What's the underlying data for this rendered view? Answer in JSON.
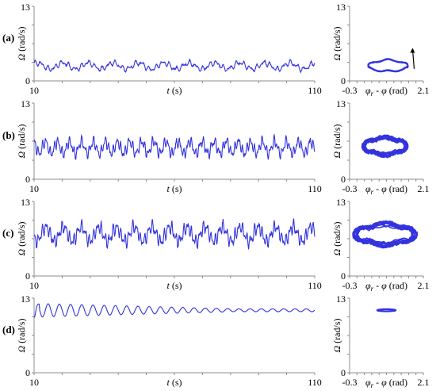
{
  "colors": {
    "series": "#3333dd",
    "axis": "#8c8c8c",
    "text": "#000000"
  },
  "chart_data": [
    {
      "panel": "(a)",
      "type": "line",
      "role": "time-series",
      "xlabel": {
        "sym": "t",
        "unit": " (s)"
      },
      "ylabel": {
        "sym": "Ω",
        "unit": " (rad/s)"
      },
      "xlim": [
        10,
        110
      ],
      "ylim": [
        0,
        13
      ],
      "x_tick_labels": [
        "10",
        "110"
      ],
      "y_tick_labels": [
        "0",
        "13"
      ],
      "x": [
        10,
        110
      ],
      "mean": 2.6,
      "amplitude": 0.9,
      "fast_period": 2.4,
      "slow_period": 9,
      "series": [
        {
          "values_range": [
            1.5,
            3.8
          ]
        }
      ]
    },
    {
      "panel": "(a)",
      "type": "scatter",
      "role": "phase-portrait",
      "xlabel": {
        "sym": "φ",
        "sub": "r",
        "rest": " - φ",
        "unit": " (rad)"
      },
      "ylabel": {
        "sym": "Ω",
        "unit": " (rad/s)"
      },
      "xlim": [
        -0.3,
        2.1
      ],
      "ylim": [
        0,
        13
      ],
      "x_tick_labels": [
        "-0.3",
        "2.1"
      ],
      "y_tick_labels": [
        "0",
        "13"
      ],
      "orbit_x": [
        0.3,
        1.6
      ],
      "orbit_y": [
        1.5,
        3.8
      ],
      "has_arrow": true
    },
    {
      "panel": "(b)",
      "type": "line",
      "role": "time-series",
      "xlabel": {
        "sym": "t",
        "unit": " (s)"
      },
      "ylabel": {
        "sym": "Ω",
        "unit": " (rad/s)"
      },
      "xlim": [
        10,
        110
      ],
      "ylim": [
        0,
        13
      ],
      "x_tick_labels": [
        "10",
        "110"
      ],
      "y_tick_labels": [
        "0",
        "13"
      ],
      "x": [
        10,
        110
      ],
      "mean": 5.4,
      "amplitude": 1.7,
      "fast_period": 1.4,
      "slow_period": 4.3,
      "series": [
        {
          "values_range": [
            3.0,
            7.8
          ]
        }
      ]
    },
    {
      "panel": "(b)",
      "type": "scatter",
      "role": "phase-portrait",
      "xlabel": {
        "sym": "φ",
        "sub": "r",
        "rest": " - φ",
        "unit": " (rad)"
      },
      "ylabel": {
        "sym": "Ω",
        "unit": " (rad/s)"
      },
      "xlim": [
        -0.3,
        2.1
      ],
      "ylim": [
        0,
        13
      ],
      "x_tick_labels": [
        "-0.3",
        "2.1"
      ],
      "y_tick_labels": [
        "0",
        "13"
      ],
      "orbit_x": [
        0.1,
        1.6
      ],
      "orbit_y": [
        3.8,
        7.5
      ],
      "has_arrow": false
    },
    {
      "panel": "(c)",
      "type": "line",
      "role": "time-series",
      "xlabel": {
        "sym": "t",
        "unit": " (s)"
      },
      "ylabel": {
        "sym": "Ω",
        "unit": " (rad/s)"
      },
      "xlim": [
        10,
        110
      ],
      "ylim": [
        0,
        13
      ],
      "x_tick_labels": [
        "10",
        "110"
      ],
      "y_tick_labels": [
        "0",
        "13"
      ],
      "x": [
        10,
        110
      ],
      "mean": 7.3,
      "amplitude": 2.1,
      "fast_period": 1.4,
      "slow_period": 6.3,
      "series": [
        {
          "values_range": [
            4.5,
            10.3
          ]
        }
      ]
    },
    {
      "panel": "(c)",
      "type": "scatter",
      "role": "phase-portrait",
      "xlabel": {
        "sym": "φ",
        "sub": "r",
        "rest": " - φ",
        "unit": " (rad)"
      },
      "ylabel": {
        "sym": "Ω",
        "unit": " (rad/s)"
      },
      "xlim": [
        -0.3,
        2.1
      ],
      "ylim": [
        0,
        13
      ],
      "x_tick_labels": [
        "-0.3",
        "2.1"
      ],
      "y_tick_labels": [
        "0",
        "13"
      ],
      "orbit_x": [
        -0.2,
        1.9
      ],
      "orbit_y": [
        5.0,
        9.5
      ],
      "has_arrow": false
    },
    {
      "panel": "(d)",
      "type": "line",
      "role": "time-series",
      "xlabel": {
        "sym": "t",
        "unit": " (s)"
      },
      "ylabel": {
        "sym": "Ω",
        "unit": " (rad/s)"
      },
      "xlim": [
        10,
        110
      ],
      "ylim": [
        0,
        13
      ],
      "x_tick_labels": [
        "10",
        "110"
      ],
      "y_tick_labels": [
        "0",
        "13"
      ],
      "x": [
        10,
        110
      ],
      "mean": 10.9,
      "amplitude_start": 1.2,
      "amplitude_end": 0.25,
      "period": 4.0,
      "series": [
        {
          "values_range": [
            9.7,
            12.2
          ]
        }
      ]
    },
    {
      "panel": "(d)",
      "type": "scatter",
      "role": "phase-portrait",
      "xlabel": {
        "sym": "φ",
        "sub": "r",
        "rest": " - φ",
        "unit": " (rad)"
      },
      "ylabel": {
        "sym": "Ω",
        "unit": " (rad/s)"
      },
      "xlim": [
        -0.3,
        2.1
      ],
      "ylim": [
        0,
        13
      ],
      "x_tick_labels": [
        "-0.3",
        "2.1"
      ],
      "y_tick_labels": [
        "0",
        "13"
      ],
      "orbit_x": [
        0.6,
        1.2
      ],
      "orbit_y": [
        10.6,
        11.2
      ],
      "has_arrow": false
    }
  ]
}
